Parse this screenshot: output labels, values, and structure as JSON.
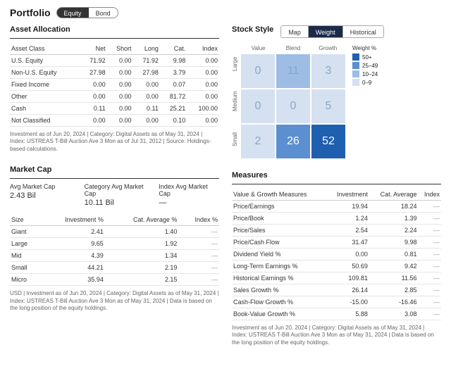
{
  "header": {
    "title": "Portfolio",
    "pills": [
      "Equity",
      "Bond"
    ],
    "active": 0
  },
  "allocation": {
    "title": "Asset Allocation",
    "columns": [
      "Asset Class",
      "Net",
      "Short",
      "Long",
      "Cat.",
      "Index"
    ],
    "rows": [
      [
        "U.S. Equity",
        "71.92",
        "0.00",
        "71.92",
        "9.98",
        "0.00"
      ],
      [
        "Non-U.S. Equity",
        "27.98",
        "0.00",
        "27.98",
        "3.79",
        "0.00"
      ],
      [
        "Fixed Income",
        "0.00",
        "0.00",
        "0.00",
        "0.07",
        "0.00"
      ],
      [
        "Other",
        "0.00",
        "0.00",
        "0.00",
        "81.72",
        "0.00"
      ],
      [
        "Cash",
        "0.11",
        "0.00",
        "0.11",
        "25.21",
        "100.00"
      ],
      [
        "Not Classified",
        "0.00",
        "0.00",
        "0.00",
        "0.10",
        "0.00"
      ]
    ],
    "foot": "Investment as of Jun 20, 2024 | Category: Digital Assets as of May 31, 2024 | Index: USTREAS T-Bill Auction Ave 3 Mon as of Jul 31, 2012 | Source: Holdings-based calculations."
  },
  "marketcap": {
    "title": "Market Cap",
    "top": [
      {
        "label": "Avg Market Cap",
        "value": "2.43 Bil"
      },
      {
        "label": "Category Avg Market Cap",
        "value": "10.11 Bil"
      },
      {
        "label": "Index Avg Market Cap",
        "value": "—"
      }
    ],
    "columns": [
      "Size",
      "Investment %",
      "Cat. Average %",
      "Index %"
    ],
    "rows": [
      [
        "Giant",
        "2.41",
        "1.40",
        "—"
      ],
      [
        "Large",
        "9.65",
        "1.92",
        "—"
      ],
      [
        "Mid",
        "4.39",
        "1.34",
        "—"
      ],
      [
        "Small",
        "44.21",
        "2.19",
        "—"
      ],
      [
        "Micro",
        "35.94",
        "2.15",
        "—"
      ]
    ],
    "foot": "USD | Investment as of Jun 20, 2024 | Category: Digital Assets as of May 31, 2024 | Index: USTREAS T-Bill Auction Ave 3 Mon as of May 31, 2024 | Data is based on the long position of the equity holdings."
  },
  "stylebox": {
    "title": "Stock Style",
    "tabs": [
      "Map",
      "Weight",
      "Historical"
    ],
    "active": 1,
    "col_labels": [
      "Value",
      "Blend",
      "Growth"
    ],
    "row_labels": [
      "Large",
      "Medium",
      "Small"
    ],
    "values": [
      [
        0,
        11,
        3
      ],
      [
        0,
        0,
        5
      ],
      [
        2,
        26,
        52
      ]
    ],
    "palette": {
      "50+": "#1f5fb0",
      "25-49": "#5b8fd0",
      "10-24": "#9dbde4",
      "0-9": "#d5e1f0"
    },
    "legend_title": "Weight %",
    "legend": [
      {
        "label": "50+",
        "color": "#1f5fb0"
      },
      {
        "label": "25–49",
        "color": "#5b8fd0"
      },
      {
        "label": "10–24",
        "color": "#9dbde4"
      },
      {
        "label": "0–9",
        "color": "#d5e1f0"
      }
    ]
  },
  "measures": {
    "title": "Measures",
    "columns": [
      "Value & Growth Measures",
      "Investment",
      "Cat. Average",
      "Index"
    ],
    "rows": [
      [
        "Price/Earnings",
        "19.94",
        "18.24",
        "—"
      ],
      [
        "Price/Book",
        "1.24",
        "1.39",
        "—"
      ],
      [
        "Price/Sales",
        "2.54",
        "2.24",
        "—"
      ],
      [
        "Price/Cash Flow",
        "31.47",
        "9.98",
        "—"
      ],
      [
        "Dividend Yield %",
        "0.00",
        "0.81",
        "—"
      ],
      [
        "Long-Term Earnings %",
        "50.69",
        "9.42",
        "—"
      ],
      [
        "Historical Earnings %",
        "109.81",
        "11.56",
        "—"
      ],
      [
        "Sales Growth %",
        "26.14",
        "2.85",
        "—"
      ],
      [
        "Cash-Flow Growth %",
        "-15.00",
        "-16.46",
        "—"
      ],
      [
        "Book-Value Growth %",
        "5.88",
        "3.08",
        "—"
      ]
    ],
    "foot": "Investment as of Jun 20, 2024 | Category: Digital Assets as of May 31, 2024 | Index: USTREAS T-Bill Auction Ave 3 Mon as of May 31, 2024 | Data is based on the long position of the equity holdings."
  }
}
